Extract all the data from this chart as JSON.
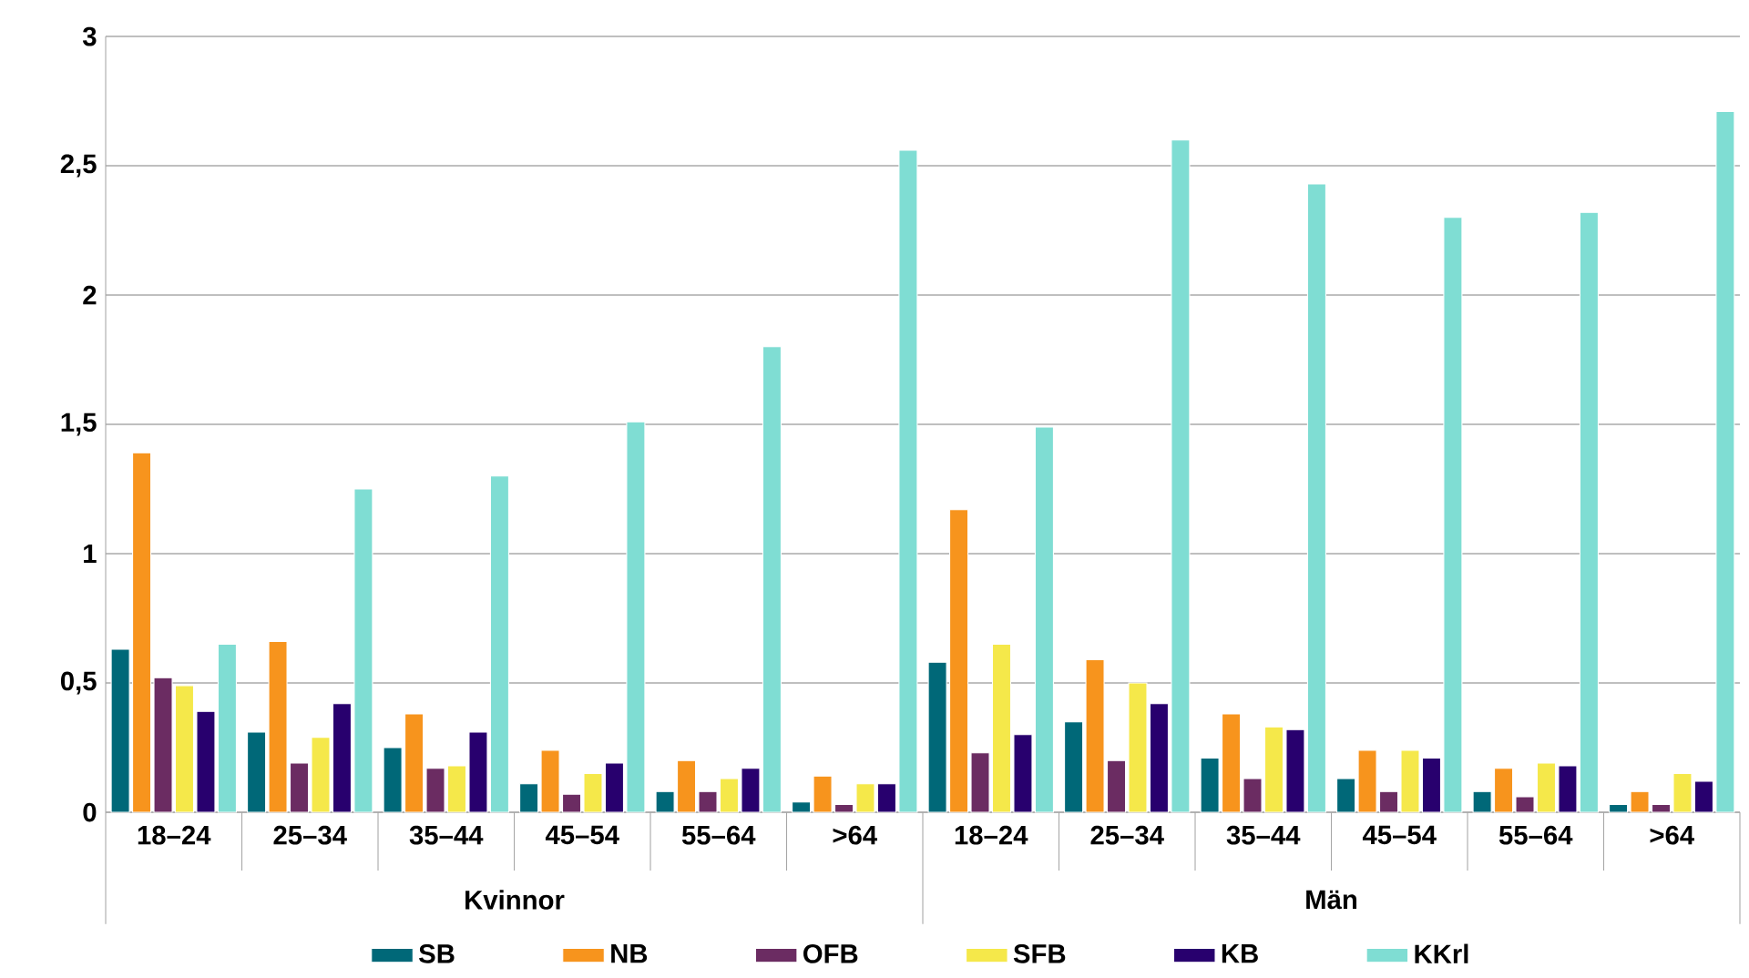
{
  "chart_data": {
    "type": "bar",
    "categories": [
      "18–24",
      "25–34",
      "35–44",
      "45–54",
      "55–64",
      ">64",
      "18–24",
      "25–34",
      "35–44",
      "45–54",
      "55–64",
      ">64"
    ],
    "series": [
      {
        "name": "SB",
        "color": "#006878",
        "values": [
          0.63,
          0.31,
          0.25,
          0.11,
          0.08,
          0.04,
          0.58,
          0.35,
          0.21,
          0.13,
          0.08,
          0.03
        ]
      },
      {
        "name": "NB",
        "color": "#f7941d",
        "values": [
          1.39,
          0.66,
          0.38,
          0.24,
          0.2,
          0.14,
          1.17,
          0.59,
          0.38,
          0.24,
          0.17,
          0.08
        ]
      },
      {
        "name": "OFB",
        "color": "#6b2c62",
        "values": [
          0.52,
          0.19,
          0.17,
          0.07,
          0.08,
          0.03,
          0.23,
          0.2,
          0.13,
          0.08,
          0.06,
          0.03
        ]
      },
      {
        "name": "SFB",
        "color": "#f5e84a",
        "values": [
          0.49,
          0.29,
          0.18,
          0.15,
          0.13,
          0.11,
          0.65,
          0.5,
          0.33,
          0.24,
          0.19,
          0.15
        ]
      },
      {
        "name": "KB",
        "color": "#28006e",
        "values": [
          0.39,
          0.42,
          0.31,
          0.19,
          0.17,
          0.11,
          0.3,
          0.42,
          0.32,
          0.21,
          0.18,
          0.12
        ]
      },
      {
        "name": "KKrl",
        "color": "#7fddd3",
        "values": [
          0.65,
          1.25,
          1.3,
          1.51,
          1.8,
          2.56,
          1.49,
          2.6,
          2.43,
          2.3,
          2.32,
          2.71
        ]
      }
    ],
    "annotations": [
      "Kvinnor",
      "Män"
    ],
    "ylim": [
      0,
      3
    ],
    "yticks": [
      0,
      {
        "value": 0.5,
        "label": "0,5"
      },
      1,
      {
        "value": 1.5,
        "label": "1,5"
      },
      2,
      {
        "value": 2.5,
        "label": "2,5"
      },
      3
    ],
    "grid": "y",
    "legend": "bottom"
  }
}
